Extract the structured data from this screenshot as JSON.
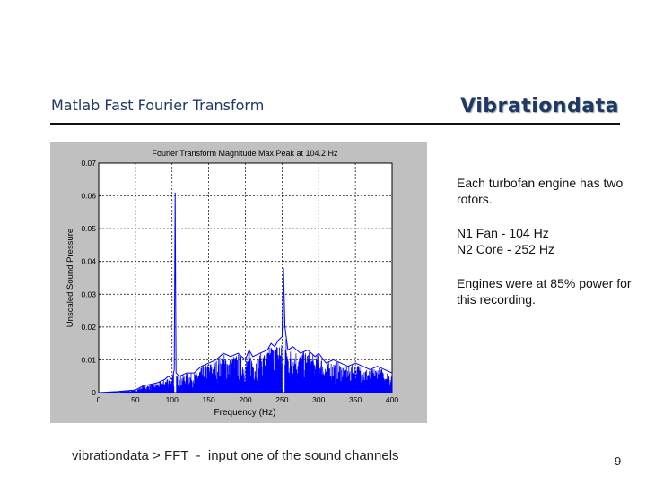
{
  "slide": {
    "title": "Matlab Fast Fourier Transform",
    "brand": "Vibrationdata",
    "notes": {
      "p1": "Each turbofan engine has two rotors.",
      "n1": "N1 Fan   - 104 Hz",
      "n2": "N2 Core  - 252 Hz",
      "p3": "Engines were at 85% power for this recording."
    },
    "footer_left": "vibrationdata > FFT",
    "footer_right": "  -  input one of the sound channels",
    "page_number": "9"
  },
  "colors": {
    "title": "#1f3864",
    "plot_line": "#0000ff",
    "figure_bg": "#c0c0c0"
  },
  "chart_data": {
    "type": "line",
    "title": "Fourier Transform Magnitude  Max Peak at    104.2 Hz",
    "xlabel": "Frequency (Hz)",
    "ylabel": "Unscaled Sound Pressure",
    "xlim": [
      0,
      400
    ],
    "ylim": [
      0,
      0.07
    ],
    "xticks": [
      "0",
      "50",
      "100",
      "150",
      "200",
      "250",
      "300",
      "350",
      "400"
    ],
    "yticks": [
      "0",
      "0.01",
      "0.02",
      "0.03",
      "0.04",
      "0.05",
      "0.06",
      "0.07"
    ],
    "grid": true,
    "series": [
      {
        "color": "#0000ff",
        "x": [
          0,
          25,
          50,
          60,
          70,
          80,
          90,
          95,
          100,
          103,
          104.2,
          105.5,
          110,
          120,
          130,
          140,
          150,
          160,
          170,
          180,
          190,
          200,
          205,
          210,
          220,
          230,
          235,
          240,
          245,
          250,
          252,
          254,
          258,
          265,
          275,
          285,
          295,
          300,
          310,
          320,
          330,
          340,
          350,
          360,
          370,
          380,
          390,
          400
        ],
        "values": [
          0.0,
          0.0003,
          0.0008,
          0.002,
          0.0025,
          0.003,
          0.004,
          0.005,
          0.004,
          0.007,
          0.061,
          0.006,
          0.005,
          0.006,
          0.006,
          0.008,
          0.009,
          0.01,
          0.012,
          0.011,
          0.012,
          0.01,
          0.013,
          0.011,
          0.012,
          0.013,
          0.015,
          0.014,
          0.016,
          0.017,
          0.038,
          0.02,
          0.013,
          0.014,
          0.012,
          0.013,
          0.011,
          0.012,
          0.009,
          0.01,
          0.009,
          0.008,
          0.009,
          0.008,
          0.007,
          0.008,
          0.007,
          0.006
        ]
      }
    ]
  }
}
